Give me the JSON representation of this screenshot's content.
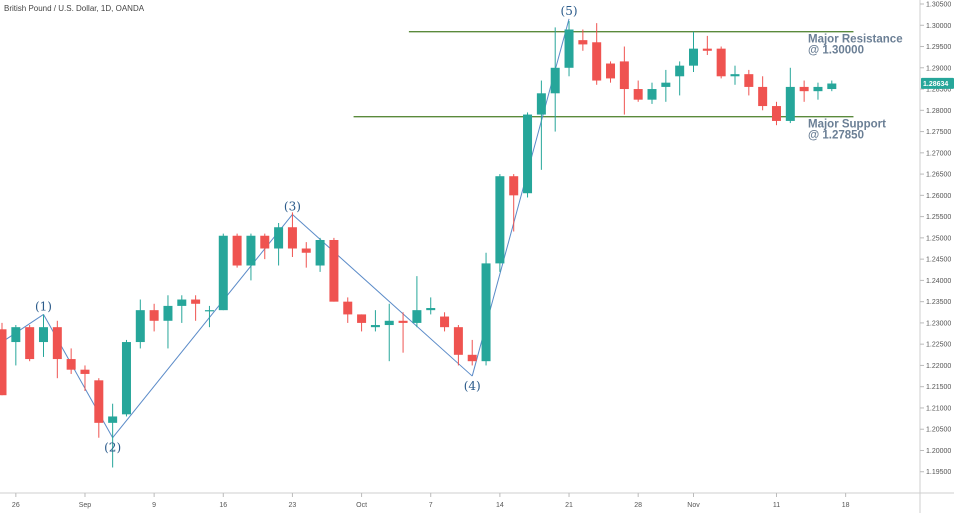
{
  "header": {
    "title": "British Pound / U.S. Dollar, 1D, OANDA"
  },
  "colors": {
    "up": "#26a69a",
    "down": "#ef5350",
    "level_line": "#5a8a3c",
    "wave_line": "#5b8bc8",
    "price_tag": "#26a69a"
  },
  "last_price": {
    "label": "1.28634",
    "value": 1.28634
  },
  "chart_data": {
    "type": "candlestick",
    "title": "British Pound / U.S. Dollar, 1D, OANDA",
    "ylim": [
      1.19,
      1.305
    ],
    "y_ticks": [
      "1.19500",
      "1.20000",
      "1.20500",
      "1.21000",
      "1.21500",
      "1.22000",
      "1.22500",
      "1.23000",
      "1.23500",
      "1.24000",
      "1.24500",
      "1.25000",
      "1.25500",
      "1.26000",
      "1.26500",
      "1.27000",
      "1.27500",
      "1.28000",
      "1.28500",
      "1.29000",
      "1.29500",
      "1.30000",
      "1.30500"
    ],
    "x_ticks": [
      {
        "label": "26",
        "i": 1
      },
      {
        "label": "Sep",
        "i": 6
      },
      {
        "label": "9",
        "i": 11
      },
      {
        "label": "16",
        "i": 16
      },
      {
        "label": "23",
        "i": 21
      },
      {
        "label": "Oct",
        "i": 26
      },
      {
        "label": "7",
        "i": 31
      },
      {
        "label": "14",
        "i": 36
      },
      {
        "label": "21",
        "i": 41
      },
      {
        "label": "28",
        "i": 46
      },
      {
        "label": "Nov",
        "i": 50
      },
      {
        "label": "11",
        "i": 56
      },
      {
        "label": "18",
        "i": 61
      }
    ],
    "candles": [
      {
        "i": 0,
        "o": 1.2285,
        "h": 1.23,
        "l": 1.213,
        "c": 1.213
      },
      {
        "i": 1,
        "o": 1.2255,
        "h": 1.2295,
        "l": 1.22,
        "c": 1.229
      },
      {
        "i": 2,
        "o": 1.229,
        "h": 1.2295,
        "l": 1.221,
        "c": 1.2215
      },
      {
        "i": 3,
        "o": 1.2255,
        "h": 1.232,
        "l": 1.222,
        "c": 1.229
      },
      {
        "i": 4,
        "o": 1.229,
        "h": 1.2305,
        "l": 1.217,
        "c": 1.2215
      },
      {
        "i": 5,
        "o": 1.2215,
        "h": 1.224,
        "l": 1.218,
        "c": 1.219
      },
      {
        "i": 6,
        "o": 1.219,
        "h": 1.22,
        "l": 1.214,
        "c": 1.218
      },
      {
        "i": 7,
        "o": 1.2165,
        "h": 1.217,
        "l": 1.203,
        "c": 1.2065
      },
      {
        "i": 8,
        "o": 1.2065,
        "h": 1.211,
        "l": 1.196,
        "c": 1.208
      },
      {
        "i": 9,
        "o": 1.2085,
        "h": 1.226,
        "l": 1.208,
        "c": 1.2255
      },
      {
        "i": 10,
        "o": 1.2255,
        "h": 1.2355,
        "l": 1.224,
        "c": 1.233
      },
      {
        "i": 11,
        "o": 1.233,
        "h": 1.2345,
        "l": 1.228,
        "c": 1.2305
      },
      {
        "i": 12,
        "o": 1.2305,
        "h": 1.2365,
        "l": 1.224,
        "c": 1.234
      },
      {
        "i": 13,
        "o": 1.234,
        "h": 1.2365,
        "l": 1.23,
        "c": 1.2355
      },
      {
        "i": 14,
        "o": 1.2355,
        "h": 1.2365,
        "l": 1.2305,
        "c": 1.2345
      },
      {
        "i": 15,
        "o": 1.233,
        "h": 1.234,
        "l": 1.229,
        "c": 1.233
      },
      {
        "i": 16,
        "o": 1.233,
        "h": 1.251,
        "l": 1.233,
        "c": 1.2505
      },
      {
        "i": 17,
        "o": 1.2505,
        "h": 1.251,
        "l": 1.243,
        "c": 1.2435
      },
      {
        "i": 18,
        "o": 1.2435,
        "h": 1.251,
        "l": 1.24,
        "c": 1.2505
      },
      {
        "i": 19,
        "o": 1.2505,
        "h": 1.251,
        "l": 1.245,
        "c": 1.2475
      },
      {
        "i": 20,
        "o": 1.2475,
        "h": 1.2535,
        "l": 1.2435,
        "c": 1.2525
      },
      {
        "i": 21,
        "o": 1.2525,
        "h": 1.256,
        "l": 1.2455,
        "c": 1.2475
      },
      {
        "i": 22,
        "o": 1.2475,
        "h": 1.249,
        "l": 1.243,
        "c": 1.2465
      },
      {
        "i": 23,
        "o": 1.2435,
        "h": 1.25,
        "l": 1.242,
        "c": 1.2495
      },
      {
        "i": 24,
        "o": 1.2495,
        "h": 1.25,
        "l": 1.235,
        "c": 1.235
      },
      {
        "i": 25,
        "o": 1.235,
        "h": 1.236,
        "l": 1.23,
        "c": 1.232
      },
      {
        "i": 26,
        "o": 1.232,
        "h": 1.232,
        "l": 1.228,
        "c": 1.23
      },
      {
        "i": 27,
        "o": 1.229,
        "h": 1.233,
        "l": 1.228,
        "c": 1.2295
      },
      {
        "i": 28,
        "o": 1.2295,
        "h": 1.2345,
        "l": 1.221,
        "c": 1.2305
      },
      {
        "i": 29,
        "o": 1.2305,
        "h": 1.2325,
        "l": 1.223,
        "c": 1.23
      },
      {
        "i": 30,
        "o": 1.23,
        "h": 1.241,
        "l": 1.229,
        "c": 1.233
      },
      {
        "i": 31,
        "o": 1.233,
        "h": 1.236,
        "l": 1.232,
        "c": 1.2335
      },
      {
        "i": 32,
        "o": 1.2315,
        "h": 1.2325,
        "l": 1.228,
        "c": 1.229
      },
      {
        "i": 33,
        "o": 1.229,
        "h": 1.2295,
        "l": 1.22,
        "c": 1.2225
      },
      {
        "i": 34,
        "o": 1.2225,
        "h": 1.226,
        "l": 1.22,
        "c": 1.221
      },
      {
        "i": 35,
        "o": 1.221,
        "h": 1.2465,
        "l": 1.22,
        "c": 1.244
      },
      {
        "i": 36,
        "o": 1.244,
        "h": 1.265,
        "l": 1.242,
        "c": 1.2645
      },
      {
        "i": 37,
        "o": 1.2645,
        "h": 1.265,
        "l": 1.2515,
        "c": 1.26
      },
      {
        "i": 38,
        "o": 1.2605,
        "h": 1.2795,
        "l": 1.2595,
        "c": 1.279
      },
      {
        "i": 39,
        "o": 1.279,
        "h": 1.287,
        "l": 1.266,
        "c": 1.284
      },
      {
        "i": 40,
        "o": 1.284,
        "h": 1.2995,
        "l": 1.275,
        "c": 1.29
      },
      {
        "i": 41,
        "o": 1.29,
        "h": 1.301,
        "l": 1.288,
        "c": 1.299
      },
      {
        "i": 42,
        "o": 1.2965,
        "h": 1.299,
        "l": 1.294,
        "c": 1.2955
      },
      {
        "i": 43,
        "o": 1.296,
        "h": 1.3005,
        "l": 1.286,
        "c": 1.287
      },
      {
        "i": 44,
        "o": 1.291,
        "h": 1.2915,
        "l": 1.2865,
        "c": 1.2875
      },
      {
        "i": 45,
        "o": 1.2915,
        "h": 1.295,
        "l": 1.279,
        "c": 1.285
      },
      {
        "i": 46,
        "o": 1.285,
        "h": 1.287,
        "l": 1.282,
        "c": 1.2825
      },
      {
        "i": 47,
        "o": 1.2825,
        "h": 1.2865,
        "l": 1.2815,
        "c": 1.285
      },
      {
        "i": 48,
        "o": 1.2855,
        "h": 1.2895,
        "l": 1.282,
        "c": 1.2865
      },
      {
        "i": 49,
        "o": 1.288,
        "h": 1.2915,
        "l": 1.2835,
        "c": 1.2905
      },
      {
        "i": 50,
        "o": 1.2905,
        "h": 1.2985,
        "l": 1.289,
        "c": 1.2945
      },
      {
        "i": 51,
        "o": 1.2945,
        "h": 1.2975,
        "l": 1.293,
        "c": 1.294
      },
      {
        "i": 52,
        "o": 1.2945,
        "h": 1.295,
        "l": 1.2875,
        "c": 1.288
      },
      {
        "i": 53,
        "o": 1.288,
        "h": 1.2905,
        "l": 1.286,
        "c": 1.2885
      },
      {
        "i": 54,
        "o": 1.2885,
        "h": 1.2895,
        "l": 1.2835,
        "c": 1.2855
      },
      {
        "i": 55,
        "o": 1.2855,
        "h": 1.288,
        "l": 1.28,
        "c": 1.281
      },
      {
        "i": 56,
        "o": 1.281,
        "h": 1.282,
        "l": 1.2765,
        "c": 1.2775
      },
      {
        "i": 57,
        "o": 1.2775,
        "h": 1.29,
        "l": 1.277,
        "c": 1.2855
      },
      {
        "i": 58,
        "o": 1.2855,
        "h": 1.287,
        "l": 1.282,
        "c": 1.2845
      },
      {
        "i": 59,
        "o": 1.2845,
        "h": 1.2865,
        "l": 1.2825,
        "c": 1.2855
      },
      {
        "i": 60,
        "o": 1.285,
        "h": 1.287,
        "l": 1.2845,
        "c": 1.2863
      }
    ],
    "wave_points": [
      {
        "label": "(1)",
        "i": 3,
        "price": 1.232,
        "pos": "above"
      },
      {
        "label": "(2)",
        "i": 8,
        "price": 1.203,
        "pos": "below"
      },
      {
        "label": "(3)",
        "i": 21,
        "price": 1.2555,
        "pos": "above"
      },
      {
        "label": "(4)",
        "i": 34,
        "price": 1.2175,
        "pos": "below"
      },
      {
        "label": "(5)",
        "i": 41,
        "price": 1.3015,
        "pos": "above"
      }
    ],
    "levels": [
      {
        "name": "resistance",
        "price": 1.2985,
        "i_start": 30,
        "i_end": 62,
        "text1": "Major Resistance",
        "text2": "@ 1.30000"
      },
      {
        "name": "support",
        "price": 1.2785,
        "i_start": 26,
        "i_end": 62,
        "text1": "Major Support",
        "text2": "@ 1.27850"
      }
    ]
  }
}
